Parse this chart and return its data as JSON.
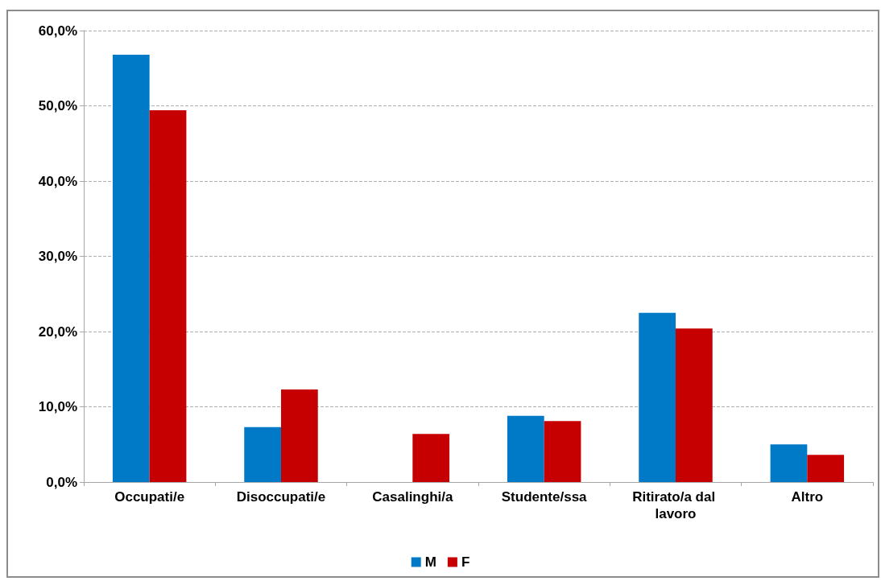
{
  "chart_data": {
    "type": "bar",
    "categories": [
      "Occupati/e",
      "Disoccupati/e",
      "Casalinghi/a",
      "Studente/ssa",
      "Ritirato/a dal lavoro",
      "Altro"
    ],
    "series": [
      {
        "name": "M",
        "color": "#0079c6",
        "values": [
          56.8,
          7.3,
          0,
          8.8,
          22.5,
          5.0
        ]
      },
      {
        "name": "F",
        "color": "#c60000",
        "values": [
          49.4,
          12.3,
          6.4,
          8.1,
          20.4,
          3.6
        ]
      }
    ],
    "ylim": [
      0,
      60
    ],
    "yticks": [
      {
        "value": 0,
        "label": "0,0%"
      },
      {
        "value": 10,
        "label": "10,0%"
      },
      {
        "value": 20,
        "label": "20,0%"
      },
      {
        "value": 30,
        "label": "30,0%"
      },
      {
        "value": 40,
        "label": "40,0%"
      },
      {
        "value": 50,
        "label": "50,0%"
      },
      {
        "value": 60,
        "label": "60,0%"
      }
    ],
    "grid": "y",
    "legend": "bottom"
  }
}
